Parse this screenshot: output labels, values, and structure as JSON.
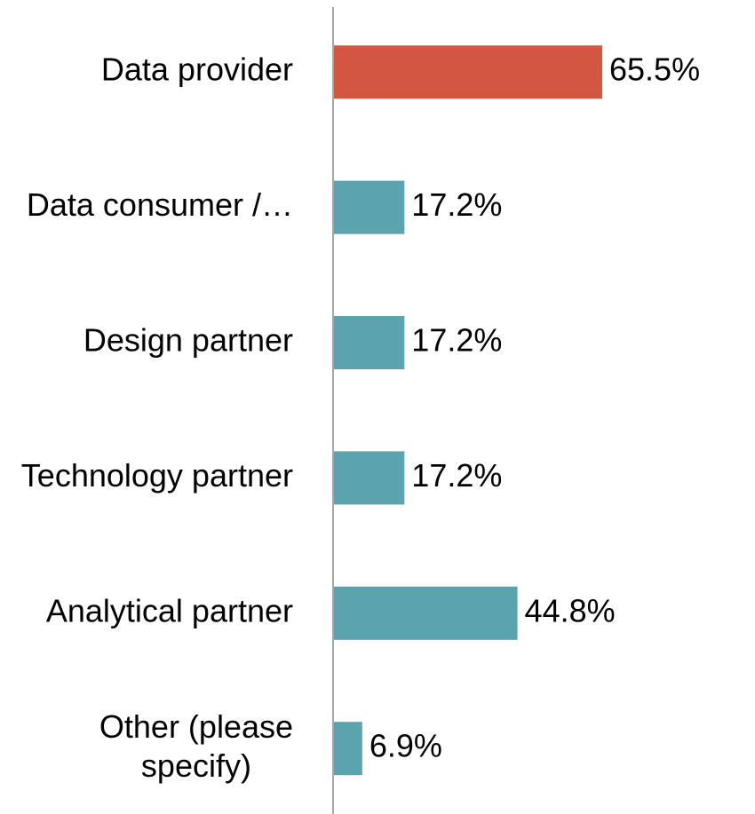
{
  "chart_data": {
    "type": "bar",
    "orientation": "horizontal",
    "categories": [
      "Data provider",
      "Data consumer /…",
      "Design partner",
      "Technology partner",
      "Analytical partner",
      "Other (please specify)"
    ],
    "values": [
      65.5,
      17.2,
      17.2,
      17.2,
      44.8,
      6.9
    ],
    "value_labels": [
      "65.5%",
      "17.2%",
      "17.2%",
      "17.2%",
      "44.8%",
      "6.9%"
    ],
    "colors": [
      "#d35640",
      "#5ba3ae",
      "#5ba3ae",
      "#5ba3ae",
      "#5ba3ae",
      "#5ba3ae"
    ],
    "grid": false
  }
}
